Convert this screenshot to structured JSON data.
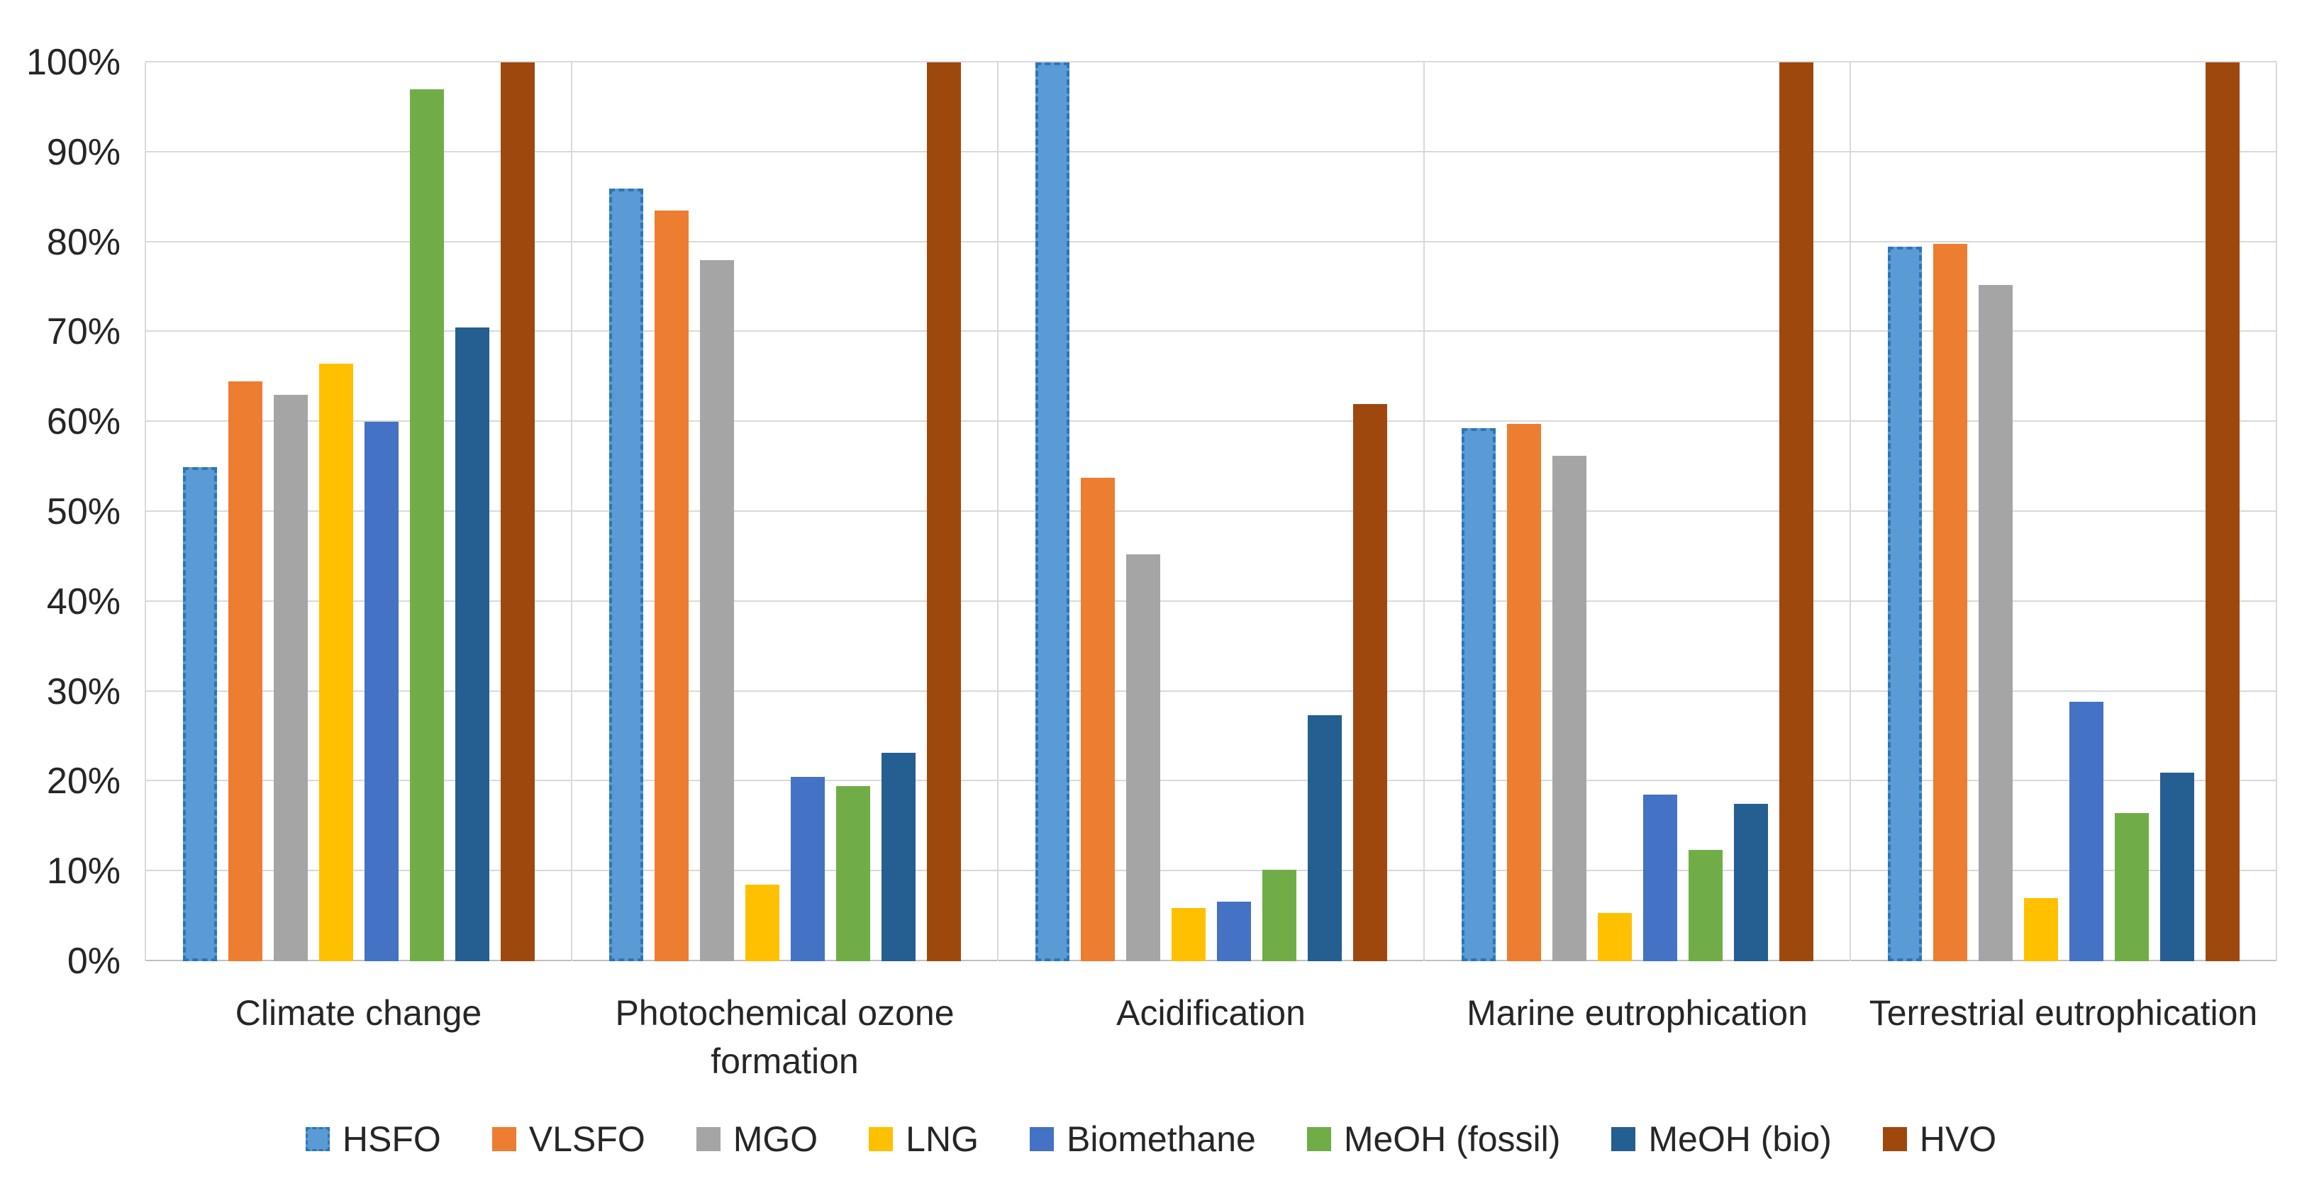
{
  "chart_data": {
    "type": "bar",
    "title": "",
    "xlabel": "",
    "ylabel": "",
    "ylim": [
      0,
      100
    ],
    "y_tick_step": 10,
    "grid": true,
    "legend_position": "bottom",
    "y_ticks_top_to_bottom": [
      "100%",
      "90%",
      "80%",
      "70%",
      "60%",
      "50%",
      "40%",
      "30%",
      "20%",
      "10%",
      "0%"
    ],
    "categories": [
      "Climate change",
      "Photochemical ozone formation",
      "Acidification",
      "Marine eutrophication",
      "Terrestrial eutrophication"
    ],
    "series": [
      {
        "name": "HSFO",
        "color": "#5B9BD5",
        "pattern": "dashed-border",
        "values": [
          55,
          86,
          100,
          59.3,
          79.5
        ]
      },
      {
        "name": "VLSFO",
        "color": "#ED7D31",
        "pattern": "solid",
        "values": [
          64.5,
          83.5,
          53.8,
          59.8,
          79.8
        ]
      },
      {
        "name": "MGO",
        "color": "#A5A5A5",
        "pattern": "dots",
        "values": [
          63,
          78,
          45.3,
          56.2,
          75.2
        ]
      },
      {
        "name": "LNG",
        "color": "#FFC000",
        "pattern": "solid",
        "values": [
          66.5,
          8.5,
          5.9,
          5.4,
          7
        ]
      },
      {
        "name": "Biomethane",
        "color": "#4472C4",
        "pattern": "solid",
        "values": [
          60,
          20.5,
          6.6,
          18.5,
          28.9
        ]
      },
      {
        "name": "MeOH (fossil)",
        "color": "#70AD47",
        "pattern": "solid",
        "values": [
          97,
          19.5,
          10.2,
          12.4,
          16.5
        ]
      },
      {
        "name": "MeOH (bio)",
        "color": "#255E91",
        "pattern": "solid",
        "values": [
          70.5,
          23.2,
          27.4,
          17.5,
          21
        ]
      },
      {
        "name": "HVO",
        "color": "#9E480E",
        "pattern": "solid",
        "values": [
          100,
          100,
          62,
          100,
          100
        ]
      }
    ],
    "colors": {
      "gridline": "#D9D9D9",
      "axis_line": "#BFBFBF",
      "text": "#262626",
      "background": "#FFFFFF"
    }
  }
}
